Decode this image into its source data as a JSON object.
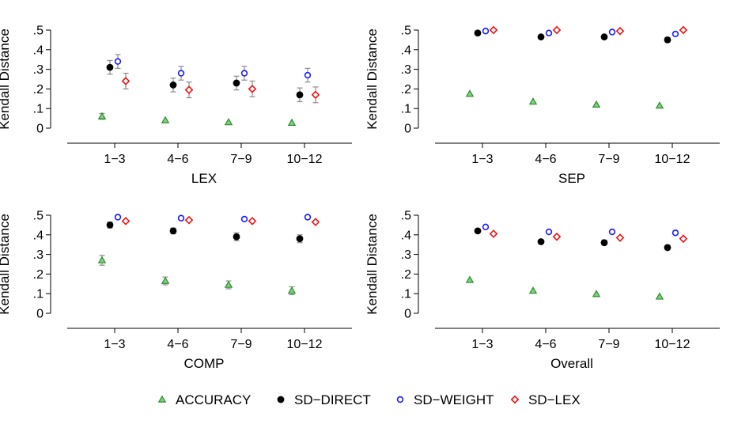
{
  "legend": {
    "items": [
      {
        "label": "ACCURACY",
        "marker": "triangle",
        "color": "#2e8b2e"
      },
      {
        "label": "SD−DIRECT",
        "marker": "dot",
        "color": "#000000"
      },
      {
        "label": "SD−WEIGHT",
        "marker": "circle",
        "color": "#1a1aff"
      },
      {
        "label": "SD−LEX",
        "marker": "diamond",
        "color": "#ee1111"
      }
    ]
  },
  "chart_data": [
    {
      "type": "scatter",
      "xlabel": "LEX",
      "ylabel": "Kendall Distance",
      "categories": [
        "1−3",
        "4−6",
        "7−9",
        "10−12"
      ],
      "yticks": [
        "0",
        ".1",
        ".2",
        ".3",
        ".4",
        ".5"
      ],
      "ylim": [
        0,
        0.5
      ],
      "grid": false,
      "series": [
        {
          "name": "ACCURACY",
          "values": [
            0.06,
            0.04,
            0.03,
            0.027
          ],
          "errors": [
            0.015,
            0.01,
            0.008,
            0.008
          ]
        },
        {
          "name": "SD−DIRECT",
          "values": [
            0.31,
            0.22,
            0.23,
            0.17
          ],
          "errors": [
            0.035,
            0.035,
            0.035,
            0.035
          ]
        },
        {
          "name": "SD−WEIGHT",
          "values": [
            0.34,
            0.28,
            0.28,
            0.27
          ],
          "errors": [
            0.035,
            0.035,
            0.035,
            0.035
          ]
        },
        {
          "name": "SD−LEX",
          "values": [
            0.24,
            0.195,
            0.2,
            0.17
          ],
          "errors": [
            0.04,
            0.04,
            0.04,
            0.04
          ]
        }
      ]
    },
    {
      "type": "scatter",
      "xlabel": "SEP",
      "ylabel": "Kendall Distance",
      "categories": [
        "1−3",
        "4−6",
        "7−9",
        "10−12"
      ],
      "yticks": [
        "0",
        ".1",
        ".2",
        ".3",
        ".4",
        ".5"
      ],
      "ylim": [
        0,
        0.5
      ],
      "grid": false,
      "series": [
        {
          "name": "ACCURACY",
          "values": [
            0.175,
            0.135,
            0.12,
            0.115
          ],
          "errors": [
            0.005,
            0.005,
            0.005,
            0.005
          ]
        },
        {
          "name": "SD−DIRECT",
          "values": [
            0.485,
            0.465,
            0.465,
            0.45
          ],
          "errors": [
            0.008,
            0.008,
            0.008,
            0.012
          ]
        },
        {
          "name": "SD−WEIGHT",
          "values": [
            0.495,
            0.485,
            0.49,
            0.48
          ],
          "errors": [
            0.004,
            0.004,
            0.004,
            0.008
          ]
        },
        {
          "name": "SD−LEX",
          "values": [
            0.5,
            0.5,
            0.495,
            0.5
          ],
          "errors": [
            0.002,
            0.002,
            0.002,
            0.002
          ]
        }
      ]
    },
    {
      "type": "scatter",
      "xlabel": "COMP",
      "ylabel": "Kendall Distance",
      "categories": [
        "1−3",
        "4−6",
        "7−9",
        "10−12"
      ],
      "yticks": [
        "0",
        ".1",
        ".2",
        ".3",
        ".4",
        ".5"
      ],
      "ylim": [
        0,
        0.5
      ],
      "grid": false,
      "series": [
        {
          "name": "ACCURACY",
          "values": [
            0.27,
            0.165,
            0.145,
            0.115
          ],
          "errors": [
            0.025,
            0.02,
            0.02,
            0.02
          ]
        },
        {
          "name": "SD−DIRECT",
          "values": [
            0.45,
            0.42,
            0.39,
            0.38
          ],
          "errors": [
            0.015,
            0.015,
            0.02,
            0.02
          ]
        },
        {
          "name": "SD−WEIGHT",
          "values": [
            0.49,
            0.485,
            0.48,
            0.49
          ],
          "errors": [
            0.004,
            0.004,
            0.004,
            0.004
          ]
        },
        {
          "name": "SD−LEX",
          "values": [
            0.47,
            0.475,
            0.47,
            0.465
          ],
          "errors": [
            0.006,
            0.006,
            0.006,
            0.006
          ]
        }
      ]
    },
    {
      "type": "scatter",
      "xlabel": "Overall",
      "ylabel": "Kendall Distance",
      "categories": [
        "1−3",
        "4−6",
        "7−9",
        "10−12"
      ],
      "yticks": [
        "0",
        ".1",
        ".2",
        ".3",
        ".4",
        ".5"
      ],
      "ylim": [
        0,
        0.5
      ],
      "grid": false,
      "series": [
        {
          "name": "ACCURACY",
          "values": [
            0.17,
            0.115,
            0.098,
            0.085
          ],
          "errors": [
            0.004,
            0.004,
            0.004,
            0.004
          ]
        },
        {
          "name": "SD−DIRECT",
          "values": [
            0.42,
            0.365,
            0.36,
            0.335
          ],
          "errors": [
            0.01,
            0.01,
            0.012,
            0.012
          ]
        },
        {
          "name": "SD−WEIGHT",
          "values": [
            0.44,
            0.415,
            0.415,
            0.41
          ],
          "errors": [
            0.008,
            0.01,
            0.008,
            0.01
          ]
        },
        {
          "name": "SD−LEX",
          "values": [
            0.405,
            0.39,
            0.385,
            0.38
          ],
          "errors": [
            0.01,
            0.01,
            0.01,
            0.01
          ]
        }
      ]
    }
  ]
}
